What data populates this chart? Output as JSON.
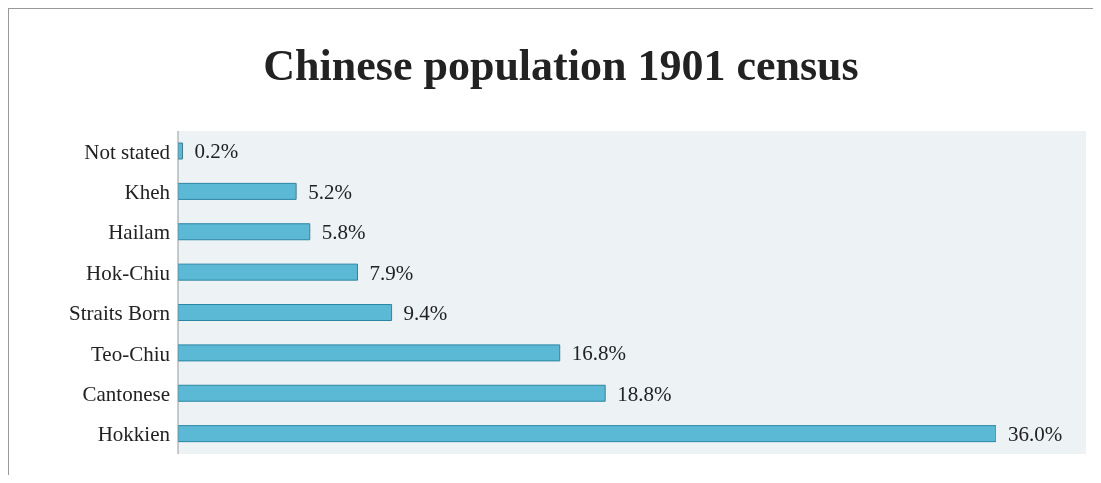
{
  "chart_data": {
    "type": "bar",
    "orientation": "horizontal",
    "title": "Chinese population 1901 census",
    "categories": [
      "Not stated",
      "Kheh",
      "Hailam",
      "Hok-Chiu",
      "Straits Born",
      "Teo-Chiu",
      "Cantonese",
      "Hokkien"
    ],
    "values": [
      0.2,
      5.2,
      5.8,
      7.9,
      9.4,
      16.8,
      18.8,
      36.0
    ],
    "value_labels": [
      "0.2%",
      "5.2%",
      "5.8%",
      "7.9%",
      "9.4%",
      "16.8%",
      "18.8%",
      "36.0%"
    ],
    "color": "#5bb9d5"
  }
}
